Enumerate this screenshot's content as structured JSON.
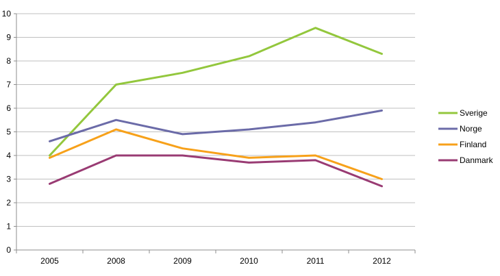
{
  "chart_data": {
    "type": "line",
    "title": "",
    "xlabel": "",
    "ylabel": "",
    "ylim": [
      0,
      10
    ],
    "yticks": [
      0,
      1,
      2,
      3,
      4,
      5,
      6,
      7,
      8,
      9,
      10
    ],
    "categories": [
      "2005",
      "2008",
      "2009",
      "2010",
      "2011",
      "2012"
    ],
    "grid": "horizontal",
    "legend": "right",
    "series": [
      {
        "name": "Sverige",
        "color": "#93c73d",
        "values": [
          4.0,
          7.0,
          7.5,
          8.2,
          9.4,
          8.3
        ]
      },
      {
        "name": "Norge",
        "color": "#6b6ba8",
        "values": [
          4.6,
          5.5,
          4.9,
          5.1,
          5.4,
          5.9
        ]
      },
      {
        "name": "Finland",
        "color": "#f7a11a",
        "values": [
          3.9,
          5.1,
          4.3,
          3.9,
          4.0,
          3.0
        ]
      },
      {
        "name": "Danmark",
        "color": "#993b73",
        "values": [
          2.8,
          4.0,
          4.0,
          3.7,
          3.8,
          2.7
        ]
      }
    ]
  }
}
